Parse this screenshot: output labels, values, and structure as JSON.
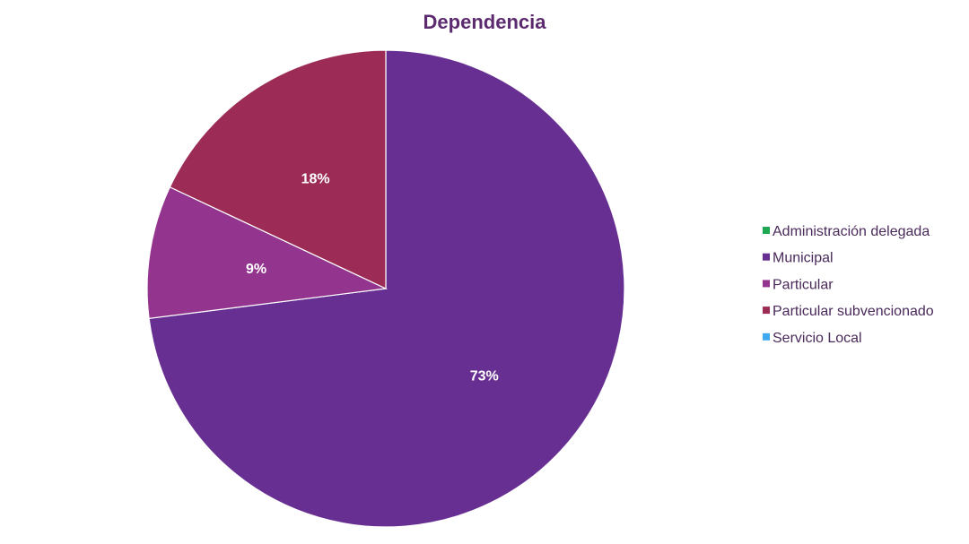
{
  "chart_data": {
    "type": "pie",
    "title": "Dependencia",
    "categories": [
      "Administración delegada",
      "Municipal",
      "Particular",
      "Particular subvencionado",
      "Servicio Local"
    ],
    "values": [
      0,
      73,
      9,
      18,
      0
    ],
    "data_labels": [
      "",
      "73%",
      "9%",
      "18%",
      ""
    ],
    "colors": [
      "#1ea854",
      "#672f91",
      "#93358e",
      "#9c2c55",
      "#3fa9f0"
    ],
    "legend": "right",
    "start_angle_deg": 0,
    "direction": "clockwise"
  },
  "theme": {
    "title_color": "#5c2a6e",
    "legend_text_color": "#4a2a5a",
    "slice_border_color": "#ffffff"
  }
}
